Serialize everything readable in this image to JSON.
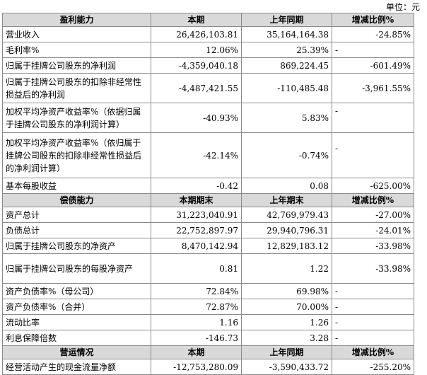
{
  "unit_label": "单位：元",
  "profitability": {
    "header": [
      "盈利能力",
      "本期",
      "上年同期",
      "增减比例%"
    ],
    "rows": [
      {
        "label": "营业收入",
        "current": "26,426,103.81",
        "prior": "35,164,164.38",
        "change": "-24.85%"
      },
      {
        "label": "毛利率%",
        "current": "12.06%",
        "prior": "25.39%",
        "change": "-"
      },
      {
        "label": "归属于挂牌公司股东的净利润",
        "current": "-4,359,040.18",
        "prior": "869,224.45",
        "change": "-601.49%"
      },
      {
        "label": "归属于挂牌公司股东的扣除非经常性损益后的净利润",
        "current": "-4,487,421.55",
        "prior": "-110,485.48",
        "change": "-3,961.55%"
      },
      {
        "label": "加权平均净资产收益率%（依据归属于挂牌公司股东的净利润计算）",
        "current": "-40.93%",
        "prior": "5.83%",
        "change": "-"
      },
      {
        "label": "加权平均净资产收益率%（依归属于挂牌公司股东的扣除非经常性损益后的净利润计算）",
        "current": "-42.14%",
        "prior": "-0.74%",
        "change": "-"
      },
      {
        "label": "基本每股收益",
        "current": "-0.42",
        "prior": "0.08",
        "change": "-625.00%"
      }
    ]
  },
  "solvency": {
    "header": [
      "偿债能力",
      "本期期末",
      "上年期末",
      "增减比例%"
    ],
    "rows": [
      {
        "label": "资产总计",
        "current": "31,223,040.91",
        "prior": "42,769,979.43",
        "change": "-27.00%"
      },
      {
        "label": "负债总计",
        "current": "22,752,897.97",
        "prior": "29,940,796.31",
        "change": "-24.01%"
      },
      {
        "label": "归属于挂牌公司股东的净资产",
        "current": "8,470,142.94",
        "prior": "12,829,183.12",
        "change": "-33.98%"
      },
      {
        "label": "归属于挂牌公司股东的每股净资产",
        "current": "0.81",
        "prior": "1.22",
        "change": "-33.98%"
      },
      {
        "label": "资产负债率%（母公司）",
        "current": "72.84%",
        "prior": "69.98%",
        "change": "-"
      },
      {
        "label": "资产负债率%（合并）",
        "current": "72.87%",
        "prior": "70.00%",
        "change": "-"
      },
      {
        "label": "流动比率",
        "current": "1.16",
        "prior": "1.26",
        "change": "-"
      },
      {
        "label": "利息保障倍数",
        "current": "-146.73",
        "prior": "3.28",
        "change": "-"
      }
    ]
  },
  "operations": {
    "header": [
      "营运情况",
      "本期",
      "上年同期",
      "增减比例%"
    ],
    "rows": [
      {
        "label": "经营活动产生的现金流量净额",
        "current": "-12,753,280.09",
        "prior": "-3,590,433.72",
        "change": "-255.20%"
      }
    ]
  }
}
